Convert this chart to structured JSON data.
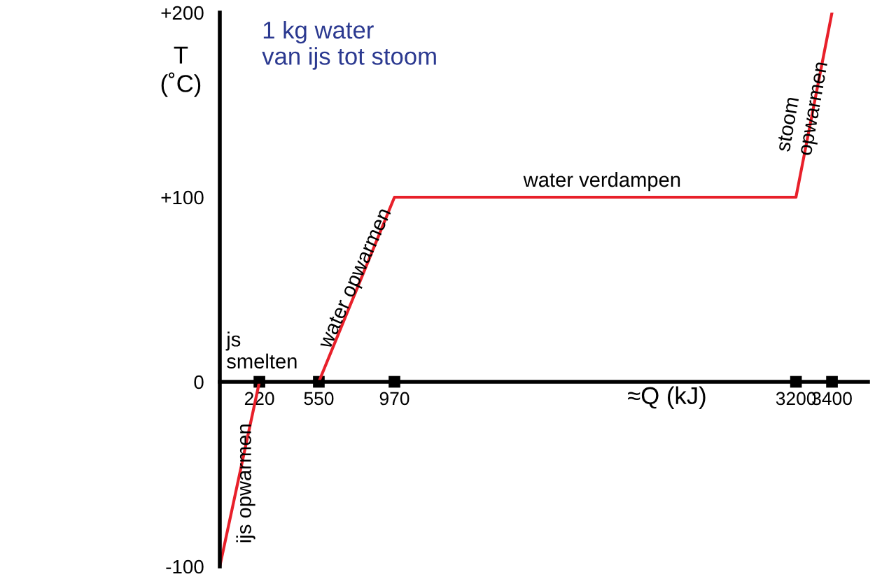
{
  "chart_data": {
    "type": "line",
    "title": "1 kg water\nvan ijs tot stoom",
    "xlabel": "≈Q (kJ)",
    "ylabel": "T\n(˚C)",
    "x": [
      0,
      220,
      550,
      970,
      3200,
      3400
    ],
    "series": [
      {
        "color": "#e8202a",
        "values": [
          -100,
          0,
          0,
          100,
          100,
          200
        ]
      }
    ],
    "xlim": [
      0,
      3600
    ],
    "ylim": [
      -100,
      200
    ],
    "xticks": [
      220,
      550,
      970,
      3200,
      3400
    ],
    "yticks": [
      {
        "value": -100,
        "label": "-100"
      },
      0,
      {
        "value": 100,
        "label": "+100"
      },
      {
        "value": 200,
        "label": "+200"
      }
    ],
    "grid": false,
    "legend": false,
    "marker": "none",
    "line_style": "solid",
    "annotations": [
      "js\nsmelten",
      "ijs opwarmen",
      "water opwarmen",
      "water verdampen",
      "stoom\nopwarmen"
    ]
  }
}
